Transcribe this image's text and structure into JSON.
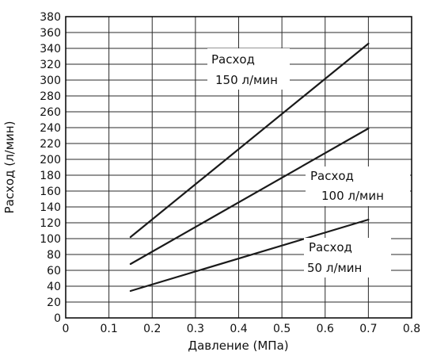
{
  "chart_data": {
    "type": "line",
    "title": "",
    "xlabel": "Давление (МПа)",
    "ylabel": "Расход (л/мин)",
    "xlim": [
      0,
      0.8
    ],
    "ylim": [
      0,
      380
    ],
    "x_ticks": [
      "0",
      "0.1",
      "0.2",
      "0.3",
      "0.4",
      "0.5",
      "0.6",
      "0.7",
      "0.8"
    ],
    "y_ticks": [
      "0",
      "20",
      "40",
      "60",
      "80",
      "100",
      "120",
      "140",
      "160",
      "180",
      "200",
      "220",
      "240",
      "260",
      "280",
      "300",
      "320",
      "340",
      "360",
      "380"
    ],
    "grid": true,
    "series": [
      {
        "x": [
          0.15,
          0.7
        ],
        "y": [
          102,
          346
        ]
      },
      {
        "x": [
          0.15,
          0.7
        ],
        "y": [
          68,
          239
        ]
      },
      {
        "x": [
          0.15,
          0.7
        ],
        "y": [
          34,
          124
        ]
      }
    ],
    "annotations": [
      {
        "line1": "Расход",
        "line2": "150 л/мин"
      },
      {
        "line1": "Расход",
        "line2": "100 л/мин"
      },
      {
        "line1": "Расход",
        "line2": "50 л/мин"
      }
    ],
    "colors": {
      "line": "#1a1a1a",
      "grid": "#2a2a2a",
      "frame": "#000000"
    }
  }
}
